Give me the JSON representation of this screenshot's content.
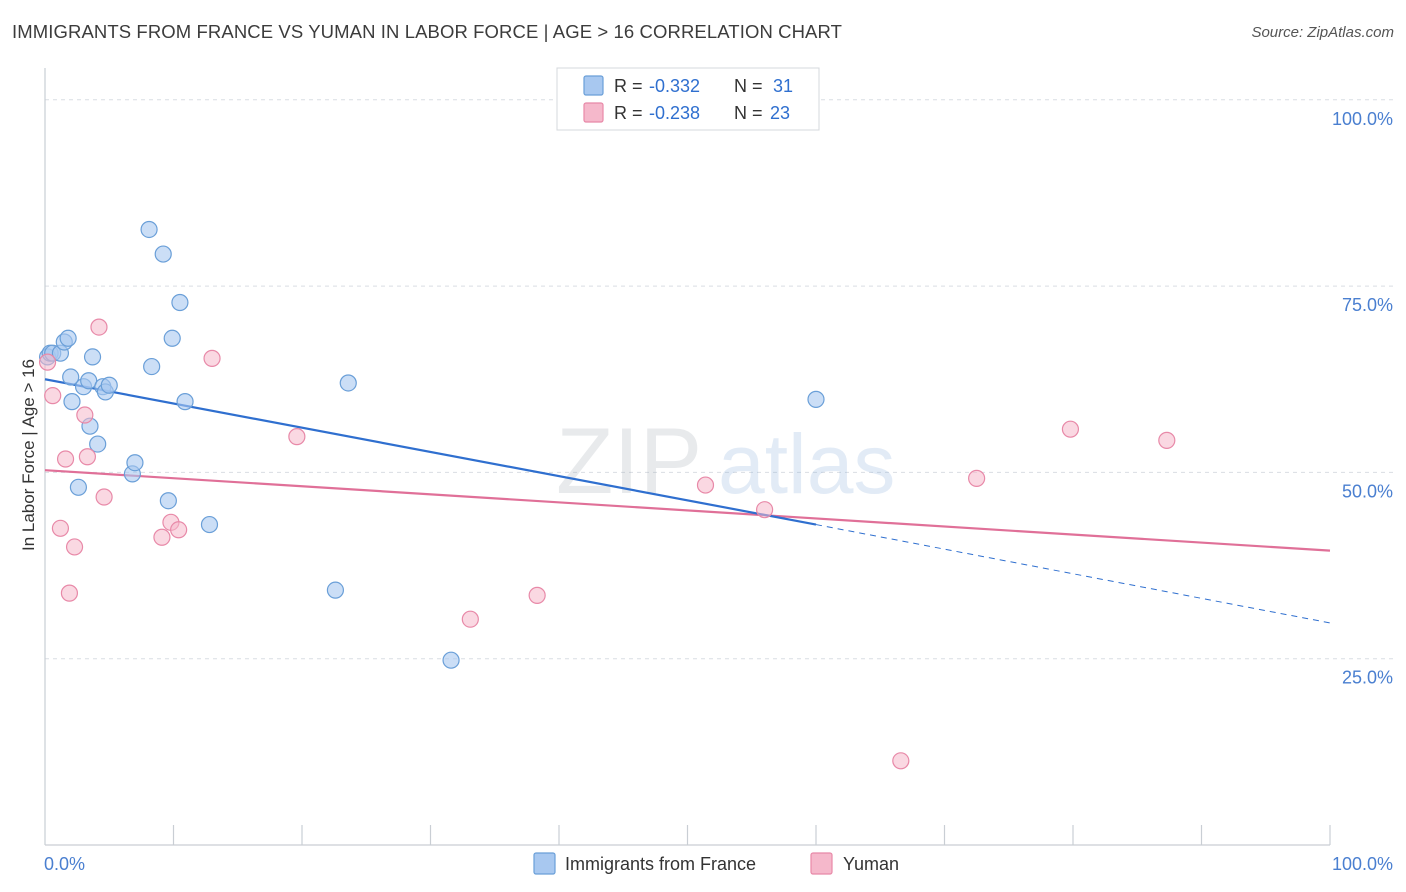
{
  "header": {
    "title": "IMMIGRANTS FROM FRANCE VS YUMAN IN LABOR FORCE | AGE > 16 CORRELATION CHART",
    "source": "Source: ZipAtlas.com"
  },
  "watermark": {
    "zip": "ZIP",
    "atlas": "atlas"
  },
  "stats_legend": {
    "rows": [
      {
        "r_label": "R = ",
        "r_value": "-0.332",
        "n_label": "N = ",
        "n_value": "31"
      },
      {
        "r_label": "R = ",
        "r_value": "-0.238",
        "n_label": "N = ",
        "n_value": "23"
      }
    ]
  },
  "colors": {
    "france_fill": "#a8c8f0",
    "france_stroke": "#6a9fd8",
    "france_line": "#2f6fcf",
    "yuman_fill": "#f5b8cb",
    "yuman_stroke": "#e889a8",
    "yuman_line": "#e07098",
    "axis_text": "#4a7fd0",
    "grid": "#d9dde3"
  },
  "chart_data": {
    "type": "scatter",
    "title": "IMMIGRANTS FROM FRANCE VS YUMAN IN LABOR FORCE | AGE > 16 CORRELATION CHART",
    "xlabel": "",
    "ylabel": "In Labor Force | Age > 16",
    "xlim": [
      0,
      100
    ],
    "ylim": [
      0,
      104
    ],
    "x_tick_labels": [
      "0.0%",
      "100.0%"
    ],
    "y_ticks": [
      25,
      50,
      75,
      100
    ],
    "y_tick_labels": [
      "25.0%",
      "50.0%",
      "75.0%",
      "100.0%"
    ],
    "grid": true,
    "legend_position": "bottom",
    "series": [
      {
        "name": "Immigrants from France",
        "points": [
          [
            0.2,
            65.5
          ],
          [
            0.4,
            66.0
          ],
          [
            0.6,
            66.0
          ],
          [
            1.2,
            66.0
          ],
          [
            1.5,
            67.5
          ],
          [
            1.8,
            68.0
          ],
          [
            2.0,
            62.8
          ],
          [
            2.1,
            59.5
          ],
          [
            2.6,
            48.0
          ],
          [
            3.0,
            61.5
          ],
          [
            3.4,
            62.3
          ],
          [
            3.5,
            56.2
          ],
          [
            3.7,
            65.5
          ],
          [
            4.1,
            53.8
          ],
          [
            4.5,
            61.5
          ],
          [
            4.7,
            60.8
          ],
          [
            5.0,
            61.7
          ],
          [
            6.8,
            49.8
          ],
          [
            7.0,
            51.3
          ],
          [
            8.1,
            82.6
          ],
          [
            8.3,
            64.2
          ],
          [
            9.2,
            79.3
          ],
          [
            9.6,
            46.2
          ],
          [
            9.9,
            68.0
          ],
          [
            10.5,
            72.8
          ],
          [
            10.9,
            59.5
          ],
          [
            12.8,
            43.0
          ],
          [
            22.6,
            34.2
          ],
          [
            23.6,
            62.0
          ],
          [
            31.6,
            24.8
          ],
          [
            60.0,
            59.8
          ]
        ],
        "trend": {
          "x": [
            0,
            60
          ],
          "y": [
            62.5,
            43.0
          ]
        },
        "trend_extension": {
          "x": [
            60,
            100
          ],
          "y": [
            43.0,
            29.8
          ]
        }
      },
      {
        "name": "Yuman",
        "points": [
          [
            0.2,
            64.8
          ],
          [
            0.6,
            60.3
          ],
          [
            1.2,
            42.5
          ],
          [
            1.6,
            51.8
          ],
          [
            1.9,
            33.8
          ],
          [
            2.3,
            40.0
          ],
          [
            3.1,
            57.7
          ],
          [
            3.3,
            52.1
          ],
          [
            4.2,
            69.5
          ],
          [
            4.6,
            46.7
          ],
          [
            9.1,
            41.3
          ],
          [
            9.8,
            43.3
          ],
          [
            10.4,
            42.3
          ],
          [
            13.0,
            65.3
          ],
          [
            19.6,
            54.8
          ],
          [
            33.1,
            30.3
          ],
          [
            38.3,
            33.5
          ],
          [
            51.4,
            48.3
          ],
          [
            56.0,
            45.0
          ],
          [
            66.6,
            11.3
          ],
          [
            72.5,
            49.2
          ],
          [
            79.8,
            55.8
          ],
          [
            87.3,
            54.3
          ]
        ],
        "trend": {
          "x": [
            0,
            100
          ],
          "y": [
            50.3,
            39.5
          ]
        }
      }
    ]
  }
}
